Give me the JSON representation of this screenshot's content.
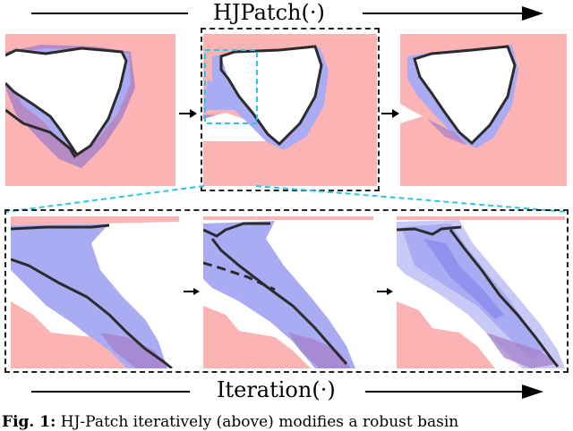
{
  "header": {
    "title": "HJPatch(·)"
  },
  "footer": {
    "title": "Iteration(·)"
  },
  "caption": {
    "prefix": "Fig. 1:",
    "text": "HJ-Patch iteratively (above) modifies a robust basin"
  },
  "colors": {
    "pink": "#fbb3b4",
    "blue": "#a9abf3",
    "purple": "#a57fc9",
    "boundary": "#2b2b2b",
    "cyan": "#28c7e6"
  }
}
